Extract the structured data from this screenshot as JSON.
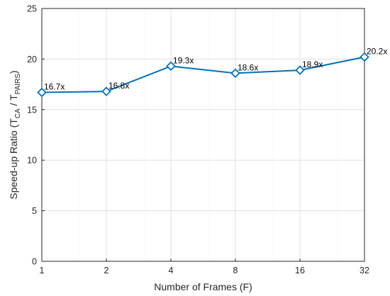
{
  "chart_data": {
    "type": "line",
    "x_scale": "log2",
    "categories": [
      "1",
      "2",
      "4",
      "8",
      "16",
      "32"
    ],
    "x": [
      1,
      2,
      4,
      8,
      16,
      32
    ],
    "series": [
      {
        "values": [
          16.7,
          16.8,
          19.3,
          18.6,
          18.9,
          20.2
        ],
        "labels": [
          "16.7x",
          "16.8x",
          "19.3x",
          "18.6x",
          "18.9x",
          "20.2x"
        ],
        "color": "#0072BD",
        "marker": "diamond"
      }
    ],
    "xlabel": "Number of Frames (F)",
    "ylabel": {
      "prefix": "Speed-up Ratio (T",
      "sub1": "CA",
      "middle": " / T",
      "sub2": "PAIRS",
      "suffix": ")"
    },
    "ylim": [
      0,
      25
    ],
    "yticks": [
      0,
      5,
      10,
      15,
      20,
      25
    ],
    "ytick_labels": [
      "0",
      "5",
      "10",
      "15",
      "20",
      "25"
    ],
    "grid": true,
    "legend": "none",
    "colors": {
      "axis": "#262626",
      "grid": "#e0e0e0",
      "line": "#0072BD"
    }
  }
}
